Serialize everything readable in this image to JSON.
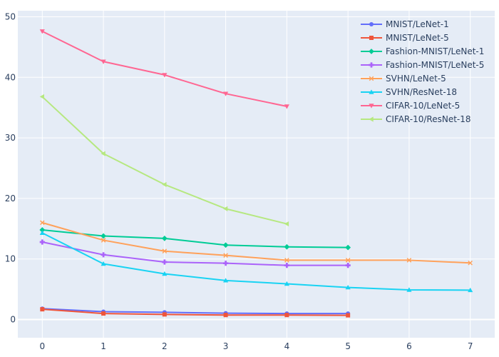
{
  "colors": {
    "page_background": "#ffffff",
    "plot_background": "#e5ecf6",
    "grid": "#ffffff",
    "text": "#2a3f5f"
  },
  "chart_data": {
    "type": "line",
    "title": "",
    "xlabel": "",
    "ylabel": "",
    "xlim": [
      -0.4,
      7.4
    ],
    "ylim": [
      -3,
      51
    ],
    "x_ticks": [
      0,
      1,
      2,
      3,
      4,
      5,
      6,
      7
    ],
    "y_ticks": [
      0,
      10,
      20,
      30,
      40,
      50
    ],
    "grid": true,
    "legend_position": "top-right",
    "series": [
      {
        "name": "MNIST/LeNet-1",
        "color": "#636efa",
        "marker": "circle",
        "x": [
          0,
          1,
          2,
          3,
          4,
          5
        ],
        "y": [
          1.8,
          1.3,
          1.2,
          1.05,
          1.0,
          1.0
        ]
      },
      {
        "name": "MNIST/LeNet-5",
        "color": "#ef553b",
        "marker": "square",
        "x": [
          0,
          1,
          2,
          3,
          4,
          5
        ],
        "y": [
          1.7,
          1.0,
          0.85,
          0.75,
          0.75,
          0.7
        ]
      },
      {
        "name": "Fashion-MNIST/LeNet-1",
        "color": "#00cc96",
        "marker": "diamond",
        "x": [
          0,
          1,
          2,
          3,
          4,
          5
        ],
        "y": [
          14.8,
          13.8,
          13.4,
          12.3,
          12.0,
          11.9
        ]
      },
      {
        "name": "Fashion-MNIST/LeNet-5",
        "color": "#ab63fa",
        "marker": "cross",
        "x": [
          0,
          1,
          2,
          3,
          4,
          5
        ],
        "y": [
          12.8,
          10.7,
          9.5,
          9.3,
          8.95,
          8.95
        ]
      },
      {
        "name": "SVHN/LeNet-5",
        "color": "#ffa15a",
        "marker": "x",
        "x": [
          0,
          1,
          2,
          3,
          4,
          5,
          6,
          7
        ],
        "y": [
          16.0,
          13.1,
          11.3,
          10.6,
          9.8,
          9.8,
          9.8,
          9.35
        ]
      },
      {
        "name": "SVHN/ResNet-18",
        "color": "#19d3f3",
        "marker": "triangle-up",
        "x": [
          0,
          1,
          2,
          3,
          4,
          5,
          6,
          7
        ],
        "y": [
          14.3,
          9.2,
          7.55,
          6.45,
          5.9,
          5.3,
          4.9,
          4.85
        ]
      },
      {
        "name": "CIFAR-10/LeNet-5",
        "color": "#ff6692",
        "marker": "triangle-down",
        "x": [
          0,
          1,
          2,
          3,
          4
        ],
        "y": [
          47.6,
          42.6,
          40.4,
          37.3,
          35.2
        ]
      },
      {
        "name": "CIFAR-10/ResNet-18",
        "color": "#b6e880",
        "marker": "triangle-left",
        "x": [
          0,
          1,
          2,
          3,
          4
        ],
        "y": [
          36.8,
          27.4,
          22.3,
          18.3,
          15.8
        ]
      }
    ]
  }
}
